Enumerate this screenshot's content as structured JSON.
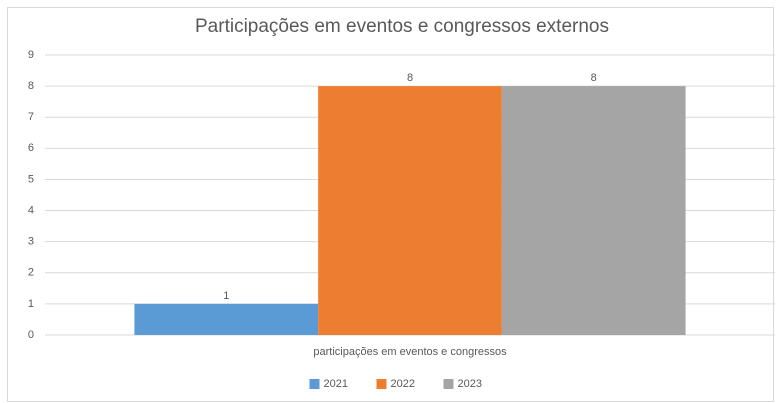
{
  "chart_data": {
    "type": "bar",
    "title": "Participações em eventos e congressos externos",
    "categories": [
      "participações em eventos e congressos"
    ],
    "series": [
      {
        "name": "2021",
        "color": "#5b9bd5",
        "values": [
          1
        ]
      },
      {
        "name": "2022",
        "color": "#ed7d31",
        "values": [
          8
        ]
      },
      {
        "name": "2023",
        "color": "#a5a5a5",
        "values": [
          8
        ]
      }
    ],
    "ylim": [
      0,
      9
    ],
    "yticks": [
      0,
      1,
      2,
      3,
      4,
      5,
      6,
      7,
      8,
      9
    ],
    "grid": true,
    "legend": "bottom"
  }
}
